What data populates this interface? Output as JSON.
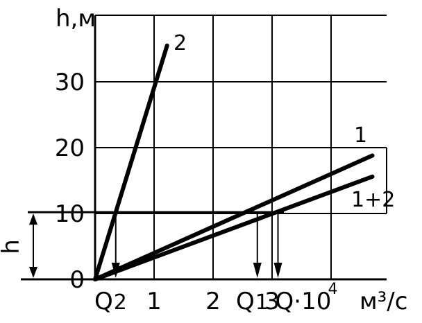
{
  "chart_data": {
    "type": "line",
    "ylabel": "h,м",
    "xunit": "м³/с",
    "xlabel_main": "Q·10",
    "xlabel_exp": "4",
    "x_ticks": [
      "1",
      "2",
      "3"
    ],
    "y_ticks": [
      "0",
      "10",
      "20",
      "30"
    ],
    "xlim": [
      0,
      5
    ],
    "ylim": [
      0,
      40
    ],
    "grid": true,
    "series": [
      {
        "name": "1",
        "x": [
          0,
          4.7
        ],
        "y": [
          0,
          18.8
        ]
      },
      {
        "name": "2",
        "x": [
          0,
          1.22
        ],
        "y": [
          0,
          35.5
        ]
      },
      {
        "name": "1+2",
        "x": [
          0,
          4.7
        ],
        "y": [
          0,
          15.6
        ]
      }
    ],
    "operating_level": {
      "label": "h",
      "y": 10.2
    },
    "markers": [
      {
        "label": "Q",
        "sub": "2",
        "x": 0.35
      },
      {
        "label": "Q",
        "sub": "1",
        "x": 2.75
      },
      {
        "label": "Q",
        "sub": "",
        "x": 3.1
      }
    ]
  }
}
